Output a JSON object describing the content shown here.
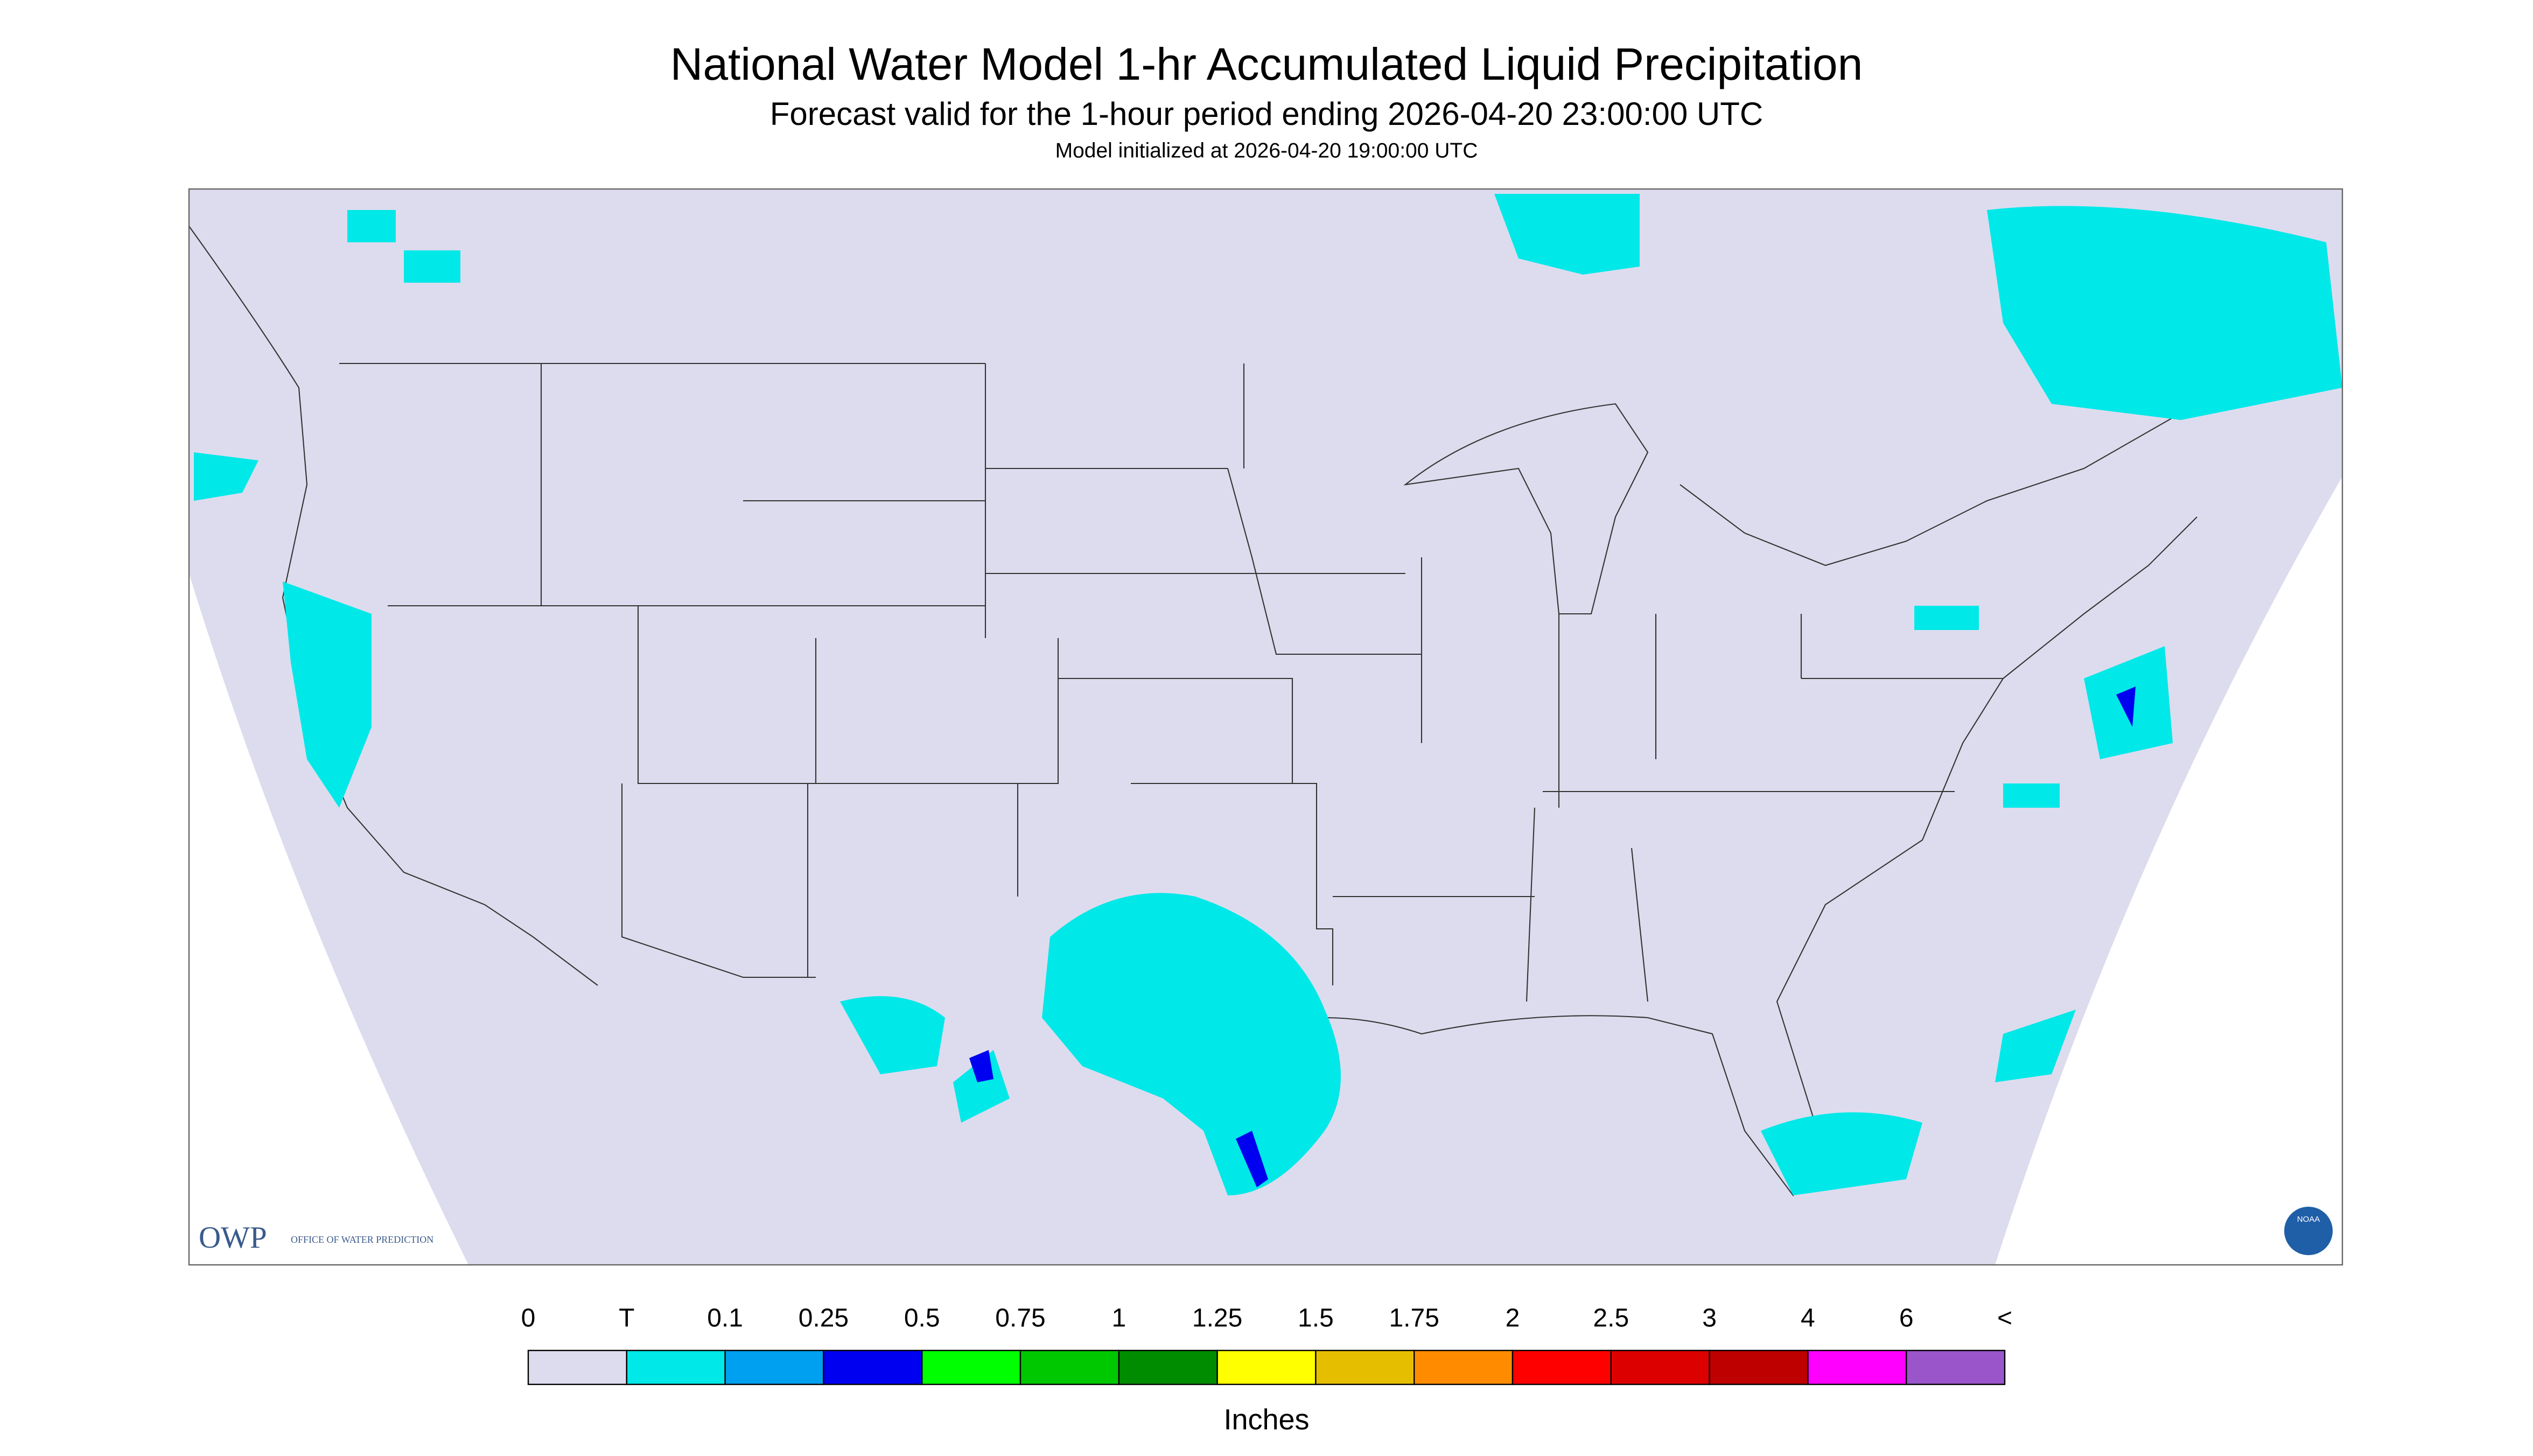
{
  "header": {
    "title": "National Water Model 1-hr Accumulated Liquid Precipitation",
    "subtitle": "Forecast valid for the 1-hour period ending 2026-04-20 23:00:00 UTC",
    "note": "Model initialized at 2026-04-20 19:00:00 UTC"
  },
  "legend": {
    "labels": [
      "0",
      "T",
      "0.1",
      "0.25",
      "0.5",
      "0.75",
      "1",
      "1.25",
      "1.5",
      "1.75",
      "2",
      "2.5",
      "3",
      "4",
      "6",
      "<"
    ],
    "colors": [
      "#dcdcee",
      "#00e8e8",
      "#00a0f0",
      "#0000f0",
      "#00ff00",
      "#00c800",
      "#008c00",
      "#ffff00",
      "#e6be00",
      "#ff8c00",
      "#ff0000",
      "#dc0000",
      "#be0000",
      "#ff00ff",
      "#9955c9"
    ],
    "unit": "Inches"
  },
  "logos": {
    "owp": "OWP",
    "owp_name": "OFFICE OF WATER PREDICTION",
    "noaa": "NOAA"
  }
}
